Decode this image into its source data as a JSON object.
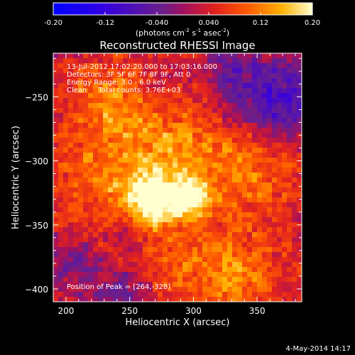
{
  "chart_data": {
    "type": "heatmap",
    "title": "Reconstructed RHESSI Image",
    "xlabel": "Heliocentric X (arcsec)",
    "ylabel": "Heliocentric Y (arcsec)",
    "xlim": [
      190,
      385
    ],
    "ylim": [
      -410,
      -216
    ],
    "x_ticks": [
      200,
      250,
      300,
      350
    ],
    "y_ticks": [
      -250,
      -300,
      -350,
      -400
    ],
    "colorbar": {
      "label_parts": [
        "(photons cm",
        "-2",
        " s",
        "-1",
        " asec",
        "-2",
        ")"
      ],
      "vmin": -0.2,
      "vmax": 0.2,
      "ticks": [
        "-0.20",
        "-0.12",
        "-0.040",
        "0.040",
        "0.12",
        "0.20"
      ]
    },
    "annotations": [
      "13-Jul-2012 17:02:20.000 to 17:03:16.000",
      "Detectors: 3F 5F 6F 7F 8F 9F, Att 0",
      "Energy Range: 3.0 - 6.0 keV",
      "Clean     Total counts: 3.76E+03"
    ],
    "peak_label": "Position of Peak = [264,-328]",
    "peak": [
      264,
      -328
    ],
    "blobs": [
      {
        "x": 265,
        "y": -330,
        "amp": 0.17,
        "s": 14
      },
      {
        "x": 296,
        "y": -330,
        "amp": 0.15,
        "s": 12
      },
      {
        "x": 280,
        "y": -295,
        "amp": 0.1,
        "s": 25
      },
      {
        "x": 232,
        "y": -255,
        "amp": 0.09,
        "s": 22
      },
      {
        "x": 345,
        "y": -300,
        "amp": 0.08,
        "s": 28
      },
      {
        "x": 225,
        "y": -315,
        "amp": 0.07,
        "s": 24
      },
      {
        "x": 330,
        "y": -390,
        "amp": 0.09,
        "s": 26
      },
      {
        "x": 270,
        "y": -380,
        "amp": 0.05,
        "s": 25
      },
      {
        "x": 365,
        "y": -255,
        "amp": -0.13,
        "s": 24
      },
      {
        "x": 328,
        "y": -232,
        "amp": -0.06,
        "s": 15
      },
      {
        "x": 245,
        "y": -403,
        "amp": -0.08,
        "s": 18
      },
      {
        "x": 205,
        "y": -380,
        "amp": -0.06,
        "s": 14
      },
      {
        "x": 250,
        "y": -360,
        "amp": -0.05,
        "s": 10
      }
    ]
  },
  "footer": {
    "date": "4-May-2014 14:17"
  }
}
